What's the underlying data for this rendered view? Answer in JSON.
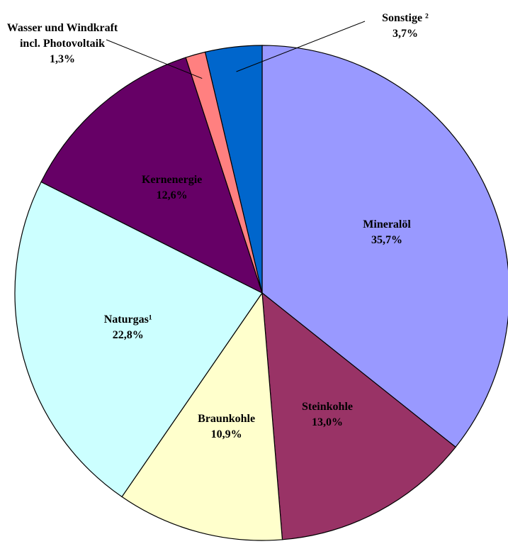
{
  "chart_data": {
    "type": "pie",
    "categories": [
      "Mineralöl",
      "Steinkohle",
      "Braunkohle",
      "Naturgas¹",
      "Kernenergie",
      "Wasser und Windkraft incl. Photovoltaik",
      "Sonstige ²"
    ],
    "values": [
      35.7,
      13.0,
      10.9,
      22.8,
      12.6,
      1.3,
      3.7
    ],
    "value_labels": [
      "35,7%",
      "13,0%",
      "10,9%",
      "22,8%",
      "12,6%",
      "1,3%",
      "3,7%"
    ],
    "colors": [
      "#9999ff",
      "#993366",
      "#ffffcc",
      "#ccffff",
      "#660066",
      "#ff8080",
      "#0066cc"
    ]
  }
}
